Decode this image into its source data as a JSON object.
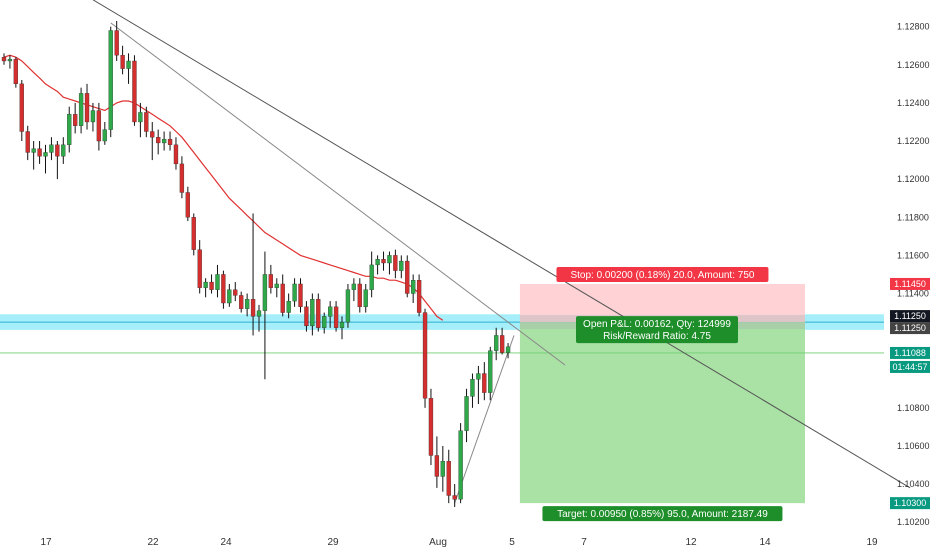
{
  "chart_data": {
    "type": "candlestick",
    "title": "",
    "ylim": [
      1.1018,
      1.1294
    ],
    "y_ticks": [
      "1.12800",
      "1.12600",
      "1.12400",
      "1.12200",
      "1.12000",
      "1.11800",
      "1.11600",
      "1.11400",
      "1.11250",
      "1.10800",
      "1.10600",
      "1.10400",
      "1.10200"
    ],
    "x_ticks": [
      "17",
      "22",
      "24",
      "29",
      "Aug",
      "5",
      "7",
      "12",
      "14",
      "19"
    ],
    "candles": [
      [
        1.1264,
        1.1266,
        1.126,
        1.1262
      ],
      [
        1.1262,
        1.1265,
        1.1258,
        1.1263
      ],
      [
        1.1263,
        1.1264,
        1.1248,
        1.125
      ],
      [
        1.125,
        1.1252,
        1.122,
        1.1225
      ],
      [
        1.1225,
        1.1228,
        1.121,
        1.1214
      ],
      [
        1.1214,
        1.122,
        1.1205,
        1.1216
      ],
      [
        1.1216,
        1.122,
        1.1208,
        1.1212
      ],
      [
        1.1212,
        1.1218,
        1.1203,
        1.1214
      ],
      [
        1.1214,
        1.1222,
        1.121,
        1.1218
      ],
      [
        1.1218,
        1.122,
        1.12,
        1.1212
      ],
      [
        1.1212,
        1.1222,
        1.1208,
        1.1218
      ],
      [
        1.1218,
        1.1238,
        1.1214,
        1.1234
      ],
      [
        1.1234,
        1.124,
        1.1224,
        1.1228
      ],
      [
        1.1228,
        1.1248,
        1.1224,
        1.1245
      ],
      [
        1.1245,
        1.125,
        1.1226,
        1.123
      ],
      [
        1.123,
        1.124,
        1.1225,
        1.1236
      ],
      [
        1.1236,
        1.124,
        1.1215,
        1.122
      ],
      [
        1.122,
        1.123,
        1.1218,
        1.1226
      ],
      [
        1.1226,
        1.128,
        1.1222,
        1.1278
      ],
      [
        1.1278,
        1.1283,
        1.1262,
        1.1265
      ],
      [
        1.1265,
        1.127,
        1.1255,
        1.1258
      ],
      [
        1.1258,
        1.1266,
        1.125,
        1.1262
      ],
      [
        1.1262,
        1.1265,
        1.1228,
        1.123
      ],
      [
        1.123,
        1.124,
        1.1222,
        1.1235
      ],
      [
        1.1235,
        1.1238,
        1.1222,
        1.1225
      ],
      [
        1.1225,
        1.123,
        1.121,
        1.1222
      ],
      [
        1.1222,
        1.1226,
        1.1213,
        1.1219
      ],
      [
        1.1219,
        1.1225,
        1.1215,
        1.1221
      ],
      [
        1.1221,
        1.1225,
        1.1215,
        1.1218
      ],
      [
        1.1218,
        1.1222,
        1.1205,
        1.1208
      ],
      [
        1.1208,
        1.1212,
        1.119,
        1.1193
      ],
      [
        1.1193,
        1.1196,
        1.1178,
        1.118
      ],
      [
        1.118,
        1.1182,
        1.116,
        1.1163
      ],
      [
        1.1163,
        1.1168,
        1.114,
        1.1143
      ],
      [
        1.1143,
        1.1148,
        1.1138,
        1.1146
      ],
      [
        1.1146,
        1.115,
        1.114,
        1.1142
      ],
      [
        1.1142,
        1.1155,
        1.1138,
        1.115
      ],
      [
        1.115,
        1.1152,
        1.1132,
        1.1135
      ],
      [
        1.1135,
        1.1145,
        1.1133,
        1.1142
      ],
      [
        1.1142,
        1.1146,
        1.1136,
        1.1139
      ],
      [
        1.1139,
        1.1141,
        1.113,
        1.1132
      ],
      [
        1.1132,
        1.114,
        1.1128,
        1.1137
      ],
      [
        1.1137,
        1.1182,
        1.1118,
        1.1128
      ],
      [
        1.1128,
        1.1134,
        1.112,
        1.1131
      ],
      [
        1.1131,
        1.1162,
        1.1095,
        1.115
      ],
      [
        1.115,
        1.1155,
        1.114,
        1.1143
      ],
      [
        1.1143,
        1.1148,
        1.1138,
        1.1145
      ],
      [
        1.1145,
        1.115,
        1.1128,
        1.113
      ],
      [
        1.113,
        1.114,
        1.1127,
        1.1136
      ],
      [
        1.1136,
        1.1148,
        1.1133,
        1.1145
      ],
      [
        1.1145,
        1.1148,
        1.113,
        1.1133
      ],
      [
        1.1133,
        1.1136,
        1.112,
        1.1123
      ],
      [
        1.1123,
        1.114,
        1.1118,
        1.1137
      ],
      [
        1.1137,
        1.114,
        1.112,
        1.1122
      ],
      [
        1.1122,
        1.113,
        1.1119,
        1.1128
      ],
      [
        1.1128,
        1.1136,
        1.1122,
        1.1133
      ],
      [
        1.1133,
        1.1136,
        1.112,
        1.1122
      ],
      [
        1.1122,
        1.1128,
        1.1116,
        1.1125
      ],
      [
        1.1125,
        1.1145,
        1.1122,
        1.1142
      ],
      [
        1.1142,
        1.1148,
        1.1136,
        1.1145
      ],
      [
        1.1145,
        1.1148,
        1.113,
        1.1133
      ],
      [
        1.1133,
        1.1145,
        1.113,
        1.1142
      ],
      [
        1.1142,
        1.1162,
        1.1138,
        1.1155
      ],
      [
        1.1155,
        1.116,
        1.115,
        1.1158
      ],
      [
        1.1158,
        1.1162,
        1.1152,
        1.1156
      ],
      [
        1.1156,
        1.1162,
        1.115,
        1.116
      ],
      [
        1.116,
        1.1163,
        1.1148,
        1.1152
      ],
      [
        1.1152,
        1.116,
        1.1148,
        1.1157
      ],
      [
        1.1157,
        1.116,
        1.1138,
        1.114
      ],
      [
        1.114,
        1.115,
        1.1135,
        1.1147
      ],
      [
        1.1147,
        1.115,
        1.1128,
        1.113
      ],
      [
        1.113,
        1.1132,
        1.108,
        1.1085
      ],
      [
        1.1085,
        1.109,
        1.105,
        1.1055
      ],
      [
        1.1055,
        1.1065,
        1.1038,
        1.1044
      ],
      [
        1.1044,
        1.106,
        1.1036,
        1.1052
      ],
      [
        1.1052,
        1.1058,
        1.103,
        1.1034
      ],
      [
        1.1034,
        1.104,
        1.1028,
        1.1032
      ],
      [
        1.1032,
        1.1072,
        1.103,
        1.1068
      ],
      [
        1.1068,
        1.109,
        1.1062,
        1.1086
      ],
      [
        1.1086,
        1.1098,
        1.108,
        1.1095
      ],
      [
        1.1095,
        1.1102,
        1.1082,
        1.1098
      ],
      [
        1.1098,
        1.1104,
        1.1084,
        1.1088
      ],
      [
        1.1088,
        1.1112,
        1.1084,
        1.111
      ],
      [
        1.111,
        1.1122,
        1.1105,
        1.1118
      ],
      [
        1.1118,
        1.1122,
        1.1108,
        1.1109
      ],
      [
        1.1109,
        1.1114,
        1.1106,
        1.1112
      ]
    ],
    "series": [
      {
        "name": "",
        "color": "#e03030",
        "values": [
          1.1264,
          1.1265,
          1.1264,
          1.1262,
          1.1259,
          1.1256,
          1.1253,
          1.125,
          1.1248,
          1.1246,
          1.1243,
          1.1242,
          1.1241,
          1.124,
          1.1239,
          1.1238,
          1.1237,
          1.1236,
          1.1238,
          1.124,
          1.1241,
          1.1241,
          1.124,
          1.1238,
          1.1236,
          1.1234,
          1.1232,
          1.123,
          1.1228,
          1.1225,
          1.1222,
          1.1218,
          1.1214,
          1.121,
          1.1206,
          1.1202,
          1.1198,
          1.1194,
          1.119,
          1.1187,
          1.1184,
          1.1181,
          1.1178,
          1.1175,
          1.1172,
          1.117,
          1.1168,
          1.1166,
          1.1164,
          1.1162,
          1.116,
          1.1159,
          1.1158,
          1.1157,
          1.1156,
          1.1155,
          1.1154,
          1.1153,
          1.1152,
          1.1151,
          1.115,
          1.1149,
          1.1149,
          1.1148,
          1.1148,
          1.1147,
          1.1147,
          1.1146,
          1.1145,
          1.1143,
          1.114,
          1.1136,
          1.1132,
          1.1128,
          1.1126
        ]
      }
    ],
    "trendlines": [
      {
        "name": "long-trendline",
        "color": "#555555",
        "points": [
          [
            0,
            1.1322
          ],
          [
            106,
            1.1125
          ]
        ]
      },
      {
        "name": "short-trendline",
        "color": "#888888",
        "points": [
          [
            18,
            1.1282
          ],
          [
            94,
            1.1106
          ]
        ]
      },
      {
        "name": "rise-trendline",
        "color": "#888888",
        "points": [
          [
            76,
            1.103
          ],
          [
            86,
            1.1118
          ]
        ]
      }
    ],
    "hlines": [
      {
        "name": "resistance-zone",
        "from": 1.1123,
        "to": 1.1127,
        "color": "#5ce1f5"
      },
      {
        "name": "price-line",
        "value": 1.11088,
        "color": "#6fcf73"
      }
    ],
    "position": {
      "entry": 1.1125,
      "stop": 1.1145,
      "target": 1.103,
      "start_bar": 87,
      "end_bar": 140,
      "stop_text": "Stop: 0.00200 (0.18%) 20.0, Amount: 750",
      "target_text": "Target: 0.00950 (0.85%) 95.0, Amount: 2187.49",
      "pnl_text": "Open P&L: 0.00162, Qty: 124999",
      "rr_text": "Risk/Reward Ratio: 4.75"
    },
    "price_labels": [
      {
        "text": "1.11450",
        "value": 1.1145,
        "color": "#f23645"
      },
      {
        "text": "1.11250",
        "value": 1.1125,
        "color": "#131722"
      },
      {
        "text": "1.11250",
        "value": 1.1125,
        "color": "#444444"
      },
      {
        "text": "1.11088",
        "value": 1.11088,
        "color": "#089981"
      },
      {
        "text": "01:44:57",
        "value": 1.11088,
        "color": "#089981"
      },
      {
        "text": "1.10300",
        "value": 1.103,
        "color": "#089981"
      }
    ],
    "colors": {
      "up": "#26a69a",
      "down": "#ef5350",
      "up_fill": "#2fa84a",
      "down_fill": "#d32f2f",
      "stop_zone": "#ffcdd2",
      "target_zone": "#a5dfa0"
    }
  }
}
